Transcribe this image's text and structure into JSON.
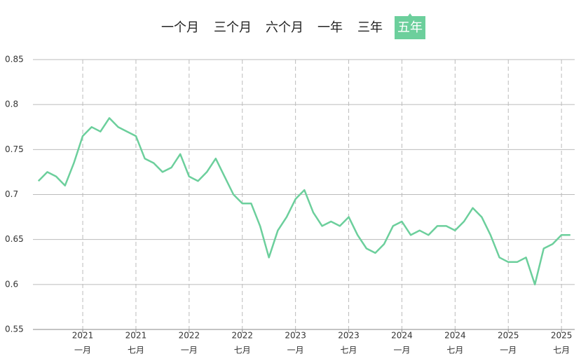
{
  "range_selector": {
    "options": [
      "一个月",
      "三个月",
      "六个月",
      "一年",
      "三年",
      "五年"
    ],
    "active": 5,
    "active_color": "#6ccf9c"
  },
  "chart_data": {
    "type": "line",
    "x": [
      "2020-08",
      "2020-09",
      "2020-10",
      "2020-11",
      "2020-12",
      "2021-01",
      "2021-02",
      "2021-03",
      "2021-04",
      "2021-05",
      "2021-06",
      "2021-07",
      "2021-08",
      "2021-09",
      "2021-10",
      "2021-11",
      "2021-12",
      "2022-01",
      "2022-02",
      "2022-03",
      "2022-04",
      "2022-05",
      "2022-06",
      "2022-07",
      "2022-08",
      "2022-09",
      "2022-10",
      "2022-11",
      "2022-12",
      "2023-01",
      "2023-02",
      "2023-03",
      "2023-04",
      "2023-05",
      "2023-06",
      "2023-07",
      "2023-08",
      "2023-09",
      "2023-10",
      "2023-11",
      "2023-12",
      "2024-01",
      "2024-02",
      "2024-03",
      "2024-04",
      "2024-05",
      "2024-06",
      "2024-07",
      "2024-08",
      "2024-09",
      "2024-10",
      "2024-11",
      "2024-12",
      "2025-01",
      "2025-02",
      "2025-03",
      "2025-04",
      "2025-05",
      "2025-06",
      "2025-07",
      "2025-08"
    ],
    "series": [
      {
        "color": "#6ccf9c",
        "values": [
          0.715,
          0.725,
          0.72,
          0.71,
          0.735,
          0.765,
          0.775,
          0.77,
          0.785,
          0.775,
          0.77,
          0.765,
          0.74,
          0.735,
          0.725,
          0.73,
          0.745,
          0.72,
          0.715,
          0.725,
          0.74,
          0.72,
          0.7,
          0.69,
          0.69,
          0.665,
          0.63,
          0.66,
          0.675,
          0.695,
          0.705,
          0.68,
          0.665,
          0.67,
          0.665,
          0.675,
          0.655,
          0.64,
          0.635,
          0.645,
          0.665,
          0.67,
          0.655,
          0.66,
          0.655,
          0.665,
          0.665,
          0.66,
          0.67,
          0.685,
          0.675,
          0.655,
          0.63,
          0.625,
          0.625,
          0.63,
          0.6,
          0.64,
          0.645,
          0.655,
          0.655
        ]
      }
    ],
    "xlim": [
      "2020-08",
      "2025-08"
    ],
    "xticks": [
      {
        "value": "2021-01",
        "label": [
          "2021",
          "一月"
        ]
      },
      {
        "value": "2021-07",
        "label": [
          "2021",
          "七月"
        ]
      },
      {
        "value": "2022-01",
        "label": [
          "2022",
          "一月"
        ]
      },
      {
        "value": "2022-07",
        "label": [
          "2022",
          "七月"
        ]
      },
      {
        "value": "2023-01",
        "label": [
          "2023",
          "一月"
        ]
      },
      {
        "value": "2023-07",
        "label": [
          "2023",
          "七月"
        ]
      },
      {
        "value": "2024-01",
        "label": [
          "2024",
          "一月"
        ]
      },
      {
        "value": "2024-07",
        "label": [
          "2024",
          "七月"
        ]
      },
      {
        "value": "2025-01",
        "label": [
          "2025",
          "一月"
        ]
      },
      {
        "value": "2025-07",
        "label": [
          "2025",
          "七月"
        ]
      }
    ],
    "ylim": [
      0.55,
      0.85
    ],
    "yticks": [
      0.55,
      0.6,
      0.65,
      0.7,
      0.75,
      0.8,
      0.85
    ],
    "grid": true
  }
}
